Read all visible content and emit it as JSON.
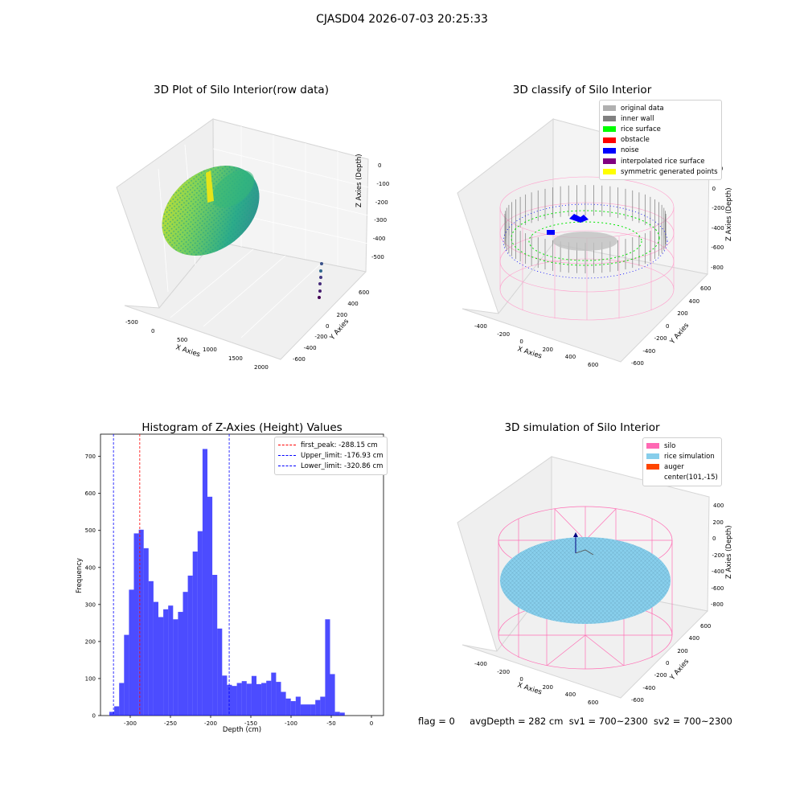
{
  "suptitle": "CJASD04 2026-07-03 20:25:33",
  "status_line": {
    "flag": "flag = 0",
    "avg_depth": "avgDepth = 282 cm",
    "sv1": "sv1 = 700~2300",
    "sv2": "sv2 = 700~2300"
  },
  "colors": {
    "viridis_low": "#440154",
    "viridis_mid": "#21918c",
    "viridis_high": "#fde725",
    "original": "#b0b0b0",
    "inner_wall": "#808080",
    "rice_surface": "#00ff00",
    "obstacle": "#ff0000",
    "noise": "#0000ff",
    "interp": "#800080",
    "symmetric": "#ffff00",
    "silo": "#ff69b4",
    "rice_sim": "#87ceeb",
    "auger": "#ff4500",
    "hist_bar": "#0000ff",
    "first_peak": "#ff0000",
    "limits": "#0000ff"
  },
  "chart_data": [
    {
      "type": "scatter",
      "title": "3D Plot of Silo Interior(row data)",
      "xlabel": "X Axies",
      "ylabel": "Y Axies",
      "zlabel": "Z Axies (Depth)",
      "x_ticks": [
        "-500",
        "0",
        "500",
        "1000",
        "1500",
        "2000"
      ],
      "y_ticks": [
        "-600",
        "-400",
        "-200",
        "0",
        "200",
        "400",
        "600"
      ],
      "z_ticks": [
        "0",
        "-100",
        "-200",
        "-300",
        "-400",
        "-500"
      ],
      "colormap": "viridis"
    },
    {
      "type": "scatter",
      "title": "3D classify of Silo Interior",
      "xlabel": "X Axies",
      "ylabel": "Y Axies",
      "zlabel": "Z Axies (Depth)",
      "x_ticks": [
        "-400",
        "-200",
        "0",
        "200",
        "400",
        "600"
      ],
      "y_ticks": [
        "-600",
        "-400",
        "-200",
        "0",
        "200",
        "400",
        "600"
      ],
      "z_ticks": [
        "200",
        "0",
        "-200",
        "-400",
        "-600",
        "-800"
      ],
      "legend": [
        "original data",
        "inner wall",
        "rice surface",
        "obstacle",
        "noise",
        "interpolated rice surface",
        "symmetric generated points"
      ],
      "legend_placement": "top-right"
    },
    {
      "type": "bar",
      "title": "Histogram of Z-Axies (Height) Values",
      "xlabel": "Depth (cm)",
      "ylabel": "Frequency",
      "xlim": [
        -337,
        15
      ],
      "ylim": [
        0,
        760
      ],
      "x_ticks": [
        -300,
        -250,
        -200,
        -150,
        -100,
        -50,
        0
      ],
      "y_ticks": [
        0,
        100,
        200,
        300,
        400,
        500,
        600,
        700
      ],
      "bin_start": -326,
      "bin_width": 6.1,
      "values": [
        10,
        25,
        88,
        218,
        340,
        492,
        502,
        452,
        363,
        307,
        266,
        287,
        297,
        260,
        280,
        334,
        378,
        443,
        498,
        720,
        591,
        380,
        235,
        108,
        83,
        80,
        88,
        93,
        86,
        107,
        85,
        88,
        94,
        116,
        91,
        64,
        46,
        39,
        51,
        30,
        30,
        30,
        42,
        51,
        260,
        112,
        10,
        8
      ],
      "vlines": [
        {
          "label": "first_peak: -288.15 cm",
          "x": -288.15,
          "color": "#ff0000"
        },
        {
          "label": "Upper_limit: -176.93 cm",
          "x": -176.93,
          "color": "#0000ff"
        },
        {
          "label": "Lower_limit: -320.86 cm",
          "x": -320.86,
          "color": "#0000ff"
        }
      ],
      "legend_placement": "top-right"
    },
    {
      "type": "scatter",
      "title": "3D simulation of Silo Interior",
      "xlabel": "X Axies",
      "ylabel": "Y Axies",
      "zlabel": "Z Axies (Depth)",
      "x_ticks": [
        "-400",
        "-200",
        "0",
        "200",
        "400",
        "600"
      ],
      "y_ticks": [
        "-600",
        "-400",
        "-200",
        "0",
        "200",
        "400",
        "600"
      ],
      "z_ticks": [
        "400",
        "200",
        "0",
        "-200",
        "-400",
        "-600",
        "-800"
      ],
      "legend": [
        "silo",
        "rice simulation",
        "auger",
        "center(101,-15)"
      ],
      "legend_placement": "top-right"
    }
  ]
}
